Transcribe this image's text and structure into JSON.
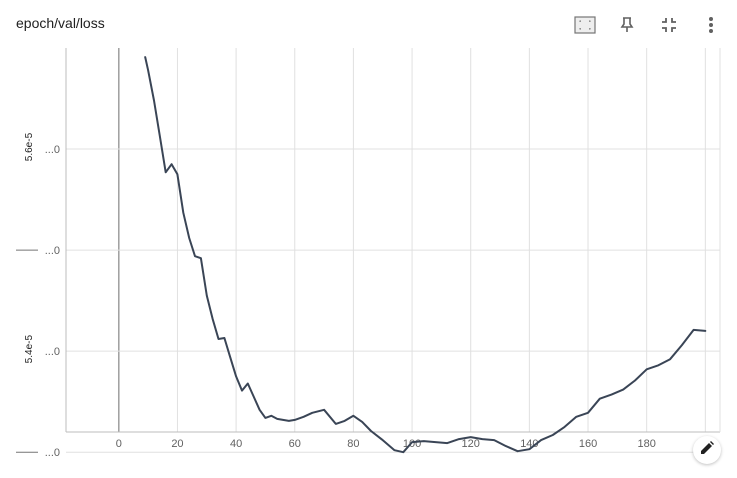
{
  "card": {
    "title": "epoch/val/loss"
  },
  "toolbar": {
    "icons": [
      "fit-to-data-icon",
      "pin-icon",
      "collapse-icon",
      "more-vert-icon"
    ]
  },
  "colors": {
    "line": "#3a4556",
    "grid": "#e0e0e0",
    "axis": "#bdbdbd",
    "zero_line": "#9e9e9e"
  },
  "chart_data": {
    "type": "line",
    "title": "epoch/val/loss",
    "xlabel": "",
    "ylabel": "",
    "xlim": [
      -18,
      205
    ],
    "ylim": [
      5.32e-05,
      5.7e-05
    ],
    "grid": true,
    "x_ticks": [
      0,
      20,
      40,
      60,
      80,
      100,
      120,
      140,
      160,
      180,
      200
    ],
    "x_tick_labels": [
      "0",
      "20",
      "40",
      "60",
      "80",
      "100",
      "120",
      "140",
      "160",
      "180",
      "200"
    ],
    "y_ticks": [
      5.6e-05,
      5.5e-05,
      5.4e-05,
      5.3e-05
    ],
    "y_tick_labels": [
      "...0",
      "...0",
      "...0",
      "...0"
    ],
    "y_group_labels": [
      "5.6e-5",
      "—",
      "5.4e-5",
      "—"
    ],
    "series": [
      {
        "x": [
          9,
          10,
          12,
          14,
          16,
          18,
          20,
          22,
          24,
          26,
          28,
          30,
          32,
          34,
          36,
          38,
          40,
          42,
          44,
          46,
          48,
          50,
          52,
          54,
          56,
          58,
          60,
          63,
          66,
          70,
          74,
          77,
          80,
          83,
          86,
          90,
          94,
          97,
          100,
          104,
          108,
          112,
          116,
          120,
          124,
          128,
          132,
          136,
          140,
          144,
          148,
          152,
          156,
          160,
          164,
          168,
          172,
          176,
          180,
          184,
          188,
          192,
          196,
          200
        ],
        "y": [
          5.691e-05,
          5.678e-05,
          5.648e-05,
          5.613e-05,
          5.577e-05,
          5.585e-05,
          5.575e-05,
          5.537e-05,
          5.512e-05,
          5.494e-05,
          5.492e-05,
          5.455e-05,
          5.432e-05,
          5.412e-05,
          5.413e-05,
          5.394e-05,
          5.375e-05,
          5.361e-05,
          5.368e-05,
          5.355e-05,
          5.342e-05,
          5.334e-05,
          5.336e-05,
          5.333e-05,
          5.332e-05,
          5.331e-05,
          5.332e-05,
          5.335e-05,
          5.339e-05,
          5.342e-05,
          5.328e-05,
          5.331e-05,
          5.336e-05,
          5.33e-05,
          5.321e-05,
          5.312e-05,
          5.302e-05,
          5.3e-05,
          5.31e-05,
          5.311e-05,
          5.31e-05,
          5.309e-05,
          5.313e-05,
          5.315e-05,
          5.313e-05,
          5.312e-05,
          5.306e-05,
          5.301e-05,
          5.303e-05,
          5.312e-05,
          5.317e-05,
          5.325e-05,
          5.335e-05,
          5.339e-05,
          5.353e-05,
          5.357e-05,
          5.362e-05,
          5.371e-05,
          5.382e-05,
          5.386e-05,
          5.392e-05,
          5.406e-05,
          5.421e-05,
          5.42e-05
        ]
      }
    ]
  }
}
